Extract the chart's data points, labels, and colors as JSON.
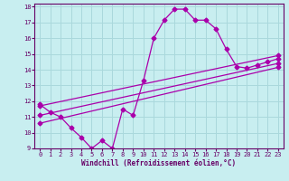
{
  "xlabel": "Windchill (Refroidissement éolien,°C)",
  "bg_color": "#c8eef0",
  "grid_color": "#aad8dc",
  "line_color": "#aa00aa",
  "xlim": [
    -0.5,
    23.5
  ],
  "ylim": [
    9,
    18.2
  ],
  "xticks": [
    0,
    1,
    2,
    3,
    4,
    5,
    6,
    7,
    8,
    9,
    10,
    11,
    12,
    13,
    14,
    15,
    16,
    17,
    18,
    19,
    20,
    21,
    22,
    23
  ],
  "yticks": [
    9,
    10,
    11,
    12,
    13,
    14,
    15,
    16,
    17,
    18
  ],
  "curve1_x": [
    0,
    1,
    2,
    3,
    4,
    5,
    6,
    7,
    8,
    9,
    10,
    11,
    12,
    13,
    14,
    15,
    16,
    17,
    18,
    19,
    20,
    21,
    22,
    23
  ],
  "curve1_y": [
    11.8,
    11.3,
    11.0,
    10.3,
    9.7,
    9.0,
    9.5,
    9.0,
    11.5,
    11.1,
    13.3,
    16.0,
    17.15,
    17.85,
    17.85,
    17.15,
    17.15,
    16.6,
    15.3,
    14.2,
    14.1,
    14.3,
    14.5,
    14.7
  ],
  "line1_x": [
    0,
    23
  ],
  "line1_y": [
    11.7,
    14.9
  ],
  "line2_x": [
    0,
    23
  ],
  "line2_y": [
    11.1,
    14.4
  ],
  "line3_x": [
    0,
    23
  ],
  "line3_y": [
    10.6,
    14.15
  ]
}
